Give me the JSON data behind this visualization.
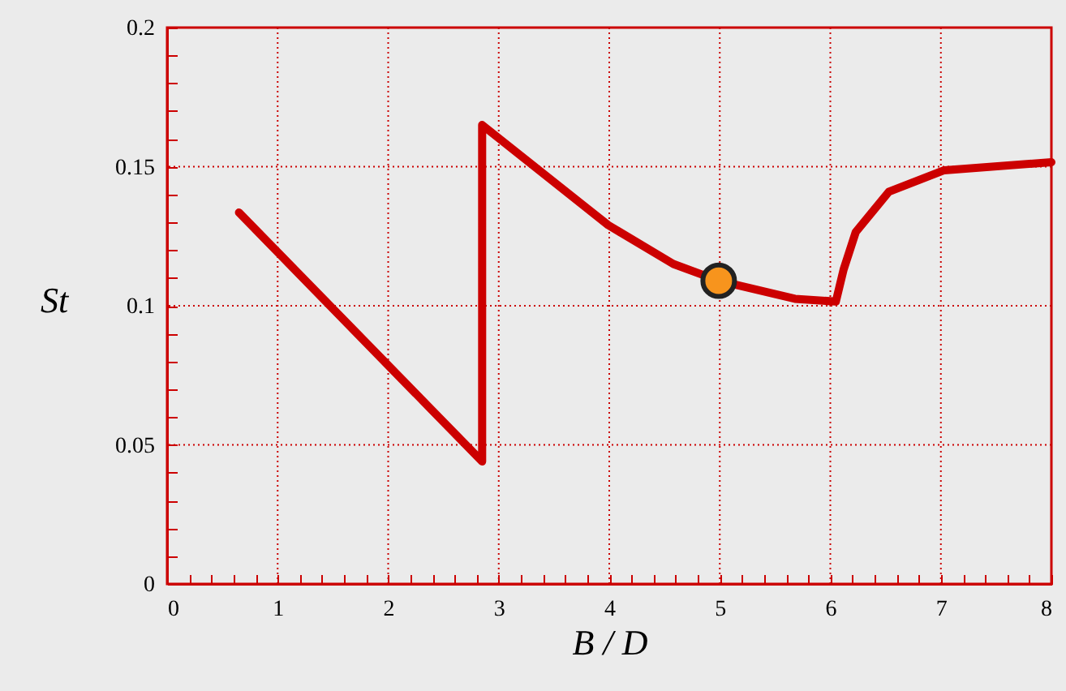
{
  "chart_data": {
    "type": "line",
    "xlabel": "B / D",
    "ylabel": "St",
    "series": [
      {
        "color": "#cc0000",
        "x": [
          0.65,
          2.85,
          2.85,
          3.99,
          4.58,
          4.99,
          5.68,
          6.05,
          6.12,
          6.23,
          6.53,
          7.03,
          8.0
        ],
        "values": [
          0.1335,
          0.044,
          0.165,
          0.129,
          0.115,
          0.109,
          0.1025,
          0.1015,
          0.113,
          0.1265,
          0.141,
          0.1487,
          0.1516
        ]
      },
      {
        "type": "scatter",
        "color": "#f7941d",
        "x": [
          4.99
        ],
        "values": [
          0.109
        ]
      }
    ],
    "xlim": [
      0,
      8
    ],
    "ylim": [
      0,
      0.2
    ],
    "xticks": [
      0,
      {
        "value": 0.2,
        "label": null
      },
      {
        "value": 0.4,
        "label": null
      },
      {
        "value": 0.6,
        "label": null
      },
      {
        "value": 0.8,
        "label": null
      },
      1,
      {
        "value": 1.2,
        "label": null
      },
      {
        "value": 1.4,
        "label": null
      },
      {
        "value": 1.6,
        "label": null
      },
      {
        "value": 1.8,
        "label": null
      },
      2,
      {
        "value": 2.2,
        "label": null
      },
      {
        "value": 2.4,
        "label": null
      },
      {
        "value": 2.6,
        "label": null
      },
      {
        "value": 2.8,
        "label": null
      },
      3,
      {
        "value": 3.2,
        "label": null
      },
      {
        "value": 3.4,
        "label": null
      },
      {
        "value": 3.6,
        "label": null
      },
      {
        "value": 3.8,
        "label": null
      },
      4,
      {
        "value": 4.2,
        "label": null
      },
      {
        "value": 4.4,
        "label": null
      },
      {
        "value": 4.6,
        "label": null
      },
      {
        "value": 4.8,
        "label": null
      },
      5,
      {
        "value": 5.2,
        "label": null
      },
      {
        "value": 5.4,
        "label": null
      },
      {
        "value": 5.6,
        "label": null
      },
      {
        "value": 5.8,
        "label": null
      },
      6,
      {
        "value": 6.2,
        "label": null
      },
      {
        "value": 6.4,
        "label": null
      },
      {
        "value": 6.6,
        "label": null
      },
      {
        "value": 6.8,
        "label": null
      },
      7,
      {
        "value": 7.2,
        "label": null
      },
      {
        "value": 7.4,
        "label": null
      },
      {
        "value": 7.6,
        "label": null
      },
      {
        "value": 7.8,
        "label": null
      },
      8
    ],
    "yticks": [
      0,
      {
        "value": 0.01,
        "label": null
      },
      {
        "value": 0.02,
        "label": null
      },
      {
        "value": 0.03,
        "label": null
      },
      {
        "value": 0.04,
        "label": null
      },
      0.05,
      {
        "value": 0.06,
        "label": null
      },
      {
        "value": 0.07,
        "label": null
      },
      {
        "value": 0.08,
        "label": null
      },
      {
        "value": 0.09,
        "label": null
      },
      0.1,
      {
        "value": 0.11,
        "label": null
      },
      {
        "value": 0.12,
        "label": null
      },
      {
        "value": 0.13,
        "label": null
      },
      {
        "value": 0.14,
        "label": null
      },
      0.15,
      {
        "value": 0.16,
        "label": null
      },
      {
        "value": 0.17,
        "label": null
      },
      {
        "value": 0.18,
        "label": null
      },
      {
        "value": 0.19,
        "label": null
      },
      0.2
    ],
    "grid": true,
    "line_style": "solid"
  }
}
